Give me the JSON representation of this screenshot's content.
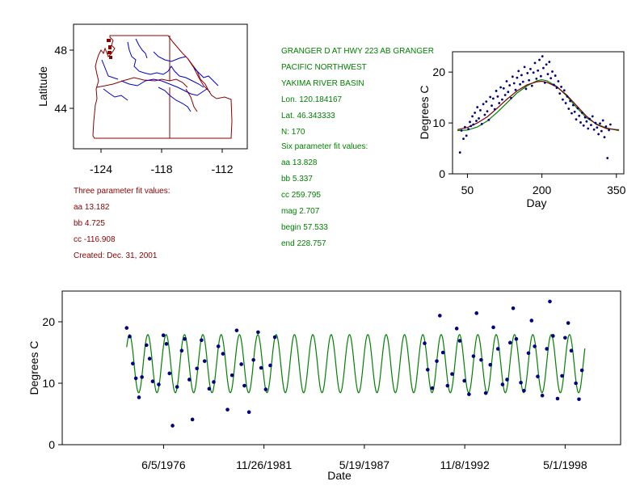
{
  "map": {
    "ylabel": "Latitude",
    "xticks": [
      "-124",
      "-118",
      "-112"
    ],
    "yticks": [
      "48",
      "44"
    ],
    "colors": {
      "border": "#8b0000",
      "river": "#0000cc"
    }
  },
  "station": {
    "name": "GRANGER D  AT HWY 223 AB GRANGER",
    "region": "PACIFIC NORTHWEST",
    "basin": "YAKIMA RIVER BASIN",
    "lon": "Lon. 120.184167",
    "lat": "Lat. 46.343333",
    "n": "N: 170"
  },
  "three_param": {
    "title": "Three parameter fit values:",
    "aa": "aa 13.182",
    "bb": "bb 4.725",
    "cc": "cc -116.908",
    "created": "Created:   Dec. 31, 2001"
  },
  "six_param": {
    "title": "Six parameter fit values:",
    "aa": "aa 13.828",
    "bb": "bb 5.337",
    "cc": "cc 259.795",
    "mag": "mag 2.707",
    "begin": "begin 57.533",
    "end": "end 228.757"
  },
  "colors": {
    "text_red": "#8b0000",
    "text_green": "#008000",
    "points": "#000080",
    "fit": "#008000",
    "fit2": "#800000"
  },
  "chart_data": [
    {
      "type": "scatter",
      "title": "",
      "xlabel": "Day",
      "ylabel": "Degrees C",
      "xlim": [
        20,
        365
      ],
      "ylim": [
        0,
        24
      ],
      "xticks": [
        50,
        200,
        350
      ],
      "yticks": [
        0,
        10,
        20
      ],
      "points": [
        [
          35,
          4.2
        ],
        [
          38,
          8.5
        ],
        [
          42,
          6.9
        ],
        [
          45,
          9.2
        ],
        [
          48,
          7.5
        ],
        [
          52,
          8.8
        ],
        [
          55,
          10.2
        ],
        [
          57,
          9.4
        ],
        [
          60,
          11.3
        ],
        [
          62,
          9.7
        ],
        [
          65,
          12.0
        ],
        [
          68,
          10.4
        ],
        [
          70,
          13.1
        ],
        [
          73,
          10.9
        ],
        [
          76,
          12.5
        ],
        [
          79,
          9.8
        ],
        [
          82,
          13.7
        ],
        [
          85,
          11.6
        ],
        [
          88,
          14.2
        ],
        [
          90,
          12.3
        ],
        [
          93,
          10.6
        ],
        [
          96,
          15.1
        ],
        [
          99,
          13.4
        ],
        [
          102,
          14.8
        ],
        [
          105,
          12.7
        ],
        [
          108,
          16.3
        ],
        [
          111,
          15.2
        ],
        [
          114,
          13.9
        ],
        [
          117,
          17.0
        ],
        [
          120,
          14.6
        ],
        [
          123,
          16.8
        ],
        [
          126,
          15.5
        ],
        [
          129,
          18.2
        ],
        [
          132,
          16.1
        ],
        [
          135,
          17.4
        ],
        [
          138,
          14.9
        ],
        [
          141,
          19.1
        ],
        [
          144,
          17.8
        ],
        [
          147,
          16.5
        ],
        [
          150,
          18.9
        ],
        [
          153,
          20.2
        ],
        [
          156,
          17.6
        ],
        [
          159,
          19.4
        ],
        [
          162,
          18.1
        ],
        [
          165,
          21.0
        ],
        [
          168,
          16.7
        ],
        [
          171,
          19.8
        ],
        [
          174,
          18.4
        ],
        [
          177,
          20.6
        ],
        [
          180,
          17.3
        ],
        [
          183,
          19.9
        ],
        [
          186,
          21.8
        ],
        [
          189,
          18.7
        ],
        [
          192,
          20.3
        ],
        [
          195,
          22.4
        ],
        [
          198,
          19.2
        ],
        [
          201,
          23.1
        ],
        [
          203,
          20.8
        ],
        [
          206,
          17.9
        ],
        [
          209,
          21.5
        ],
        [
          212,
          19.6
        ],
        [
          215,
          22.0
        ],
        [
          218,
          18.8
        ],
        [
          221,
          20.1
        ],
        [
          224,
          17.5
        ],
        [
          227,
          19.3
        ],
        [
          230,
          16.9
        ],
        [
          233,
          18.2
        ],
        [
          236,
          15.8
        ],
        [
          239,
          17.1
        ],
        [
          242,
          14.6
        ],
        [
          245,
          16.4
        ],
        [
          248,
          13.9
        ],
        [
          251,
          15.2
        ],
        [
          254,
          12.8
        ],
        [
          257,
          14.3
        ],
        [
          260,
          11.9
        ],
        [
          263,
          13.5
        ],
        [
          266,
          12.2
        ],
        [
          269,
          10.7
        ],
        [
          272,
          12.9
        ],
        [
          275,
          11.4
        ],
        [
          278,
          10.1
        ],
        [
          281,
          12.0
        ],
        [
          284,
          9.5
        ],
        [
          287,
          11.1
        ],
        [
          290,
          10.3
        ],
        [
          293,
          8.9
        ],
        [
          296,
          10.8
        ],
        [
          299,
          9.6
        ],
        [
          302,
          11.3
        ],
        [
          305,
          8.7
        ],
        [
          308,
          10.0
        ],
        [
          311,
          9.1
        ],
        [
          314,
          7.8
        ],
        [
          317,
          9.9
        ],
        [
          320,
          8.4
        ],
        [
          323,
          10.5
        ],
        [
          326,
          7.2
        ],
        [
          329,
          9.3
        ],
        [
          332,
          3.1
        ],
        [
          335,
          8.6
        ],
        [
          338,
          9.7
        ]
      ],
      "fit_lines": [
        {
          "name": "",
          "color": "#008000",
          "x": [
            30,
            50,
            70,
            90,
            110,
            130,
            150,
            170,
            190,
            200,
            210,
            230,
            250,
            270,
            290,
            310,
            330,
            350,
            355
          ],
          "y": [
            8.5,
            8.6,
            9.2,
            10.4,
            12.1,
            14.0,
            15.9,
            17.3,
            18.3,
            18.5,
            18.3,
            17.2,
            15.3,
            13.0,
            11.0,
            9.8,
            9.0,
            8.6,
            8.5
          ]
        },
        {
          "name": "",
          "color": "#800000",
          "x": [
            30,
            50,
            70,
            90,
            110,
            130,
            150,
            170,
            190,
            200,
            210,
            230,
            250,
            270,
            290,
            310,
            330,
            350,
            355
          ],
          "y": [
            8.7,
            9.1,
            10.0,
            11.2,
            12.9,
            14.7,
            16.3,
            17.5,
            18.1,
            18.2,
            18.0,
            17.1,
            15.5,
            13.4,
            11.3,
            9.7,
            8.9,
            8.7,
            8.7
          ]
        }
      ]
    },
    {
      "type": "line",
      "title": "",
      "xlabel": "Date",
      "ylabel": "Degrees C",
      "ylim": [
        0,
        25
      ],
      "yticks": [
        0,
        10,
        20
      ],
      "xticks": [
        "6/5/1976",
        "11/26/1981",
        "5/19/1987",
        "11/8/1992",
        "5/1/1998"
      ],
      "xlim": [
        "11/25/1970",
        "5/10/2001"
      ],
      "fit": {
        "aa": 13.182,
        "bb": 4.725,
        "cc": -116.908,
        "start": "6/1/1974",
        "end": "6/1/1999",
        "color": "#008000"
      },
      "points": [
        [
          "6/1/1974",
          19.0
        ],
        [
          "8/1/1974",
          17.6
        ],
        [
          "10/1/1974",
          13.2
        ],
        [
          "12/1/1974",
          10.8
        ],
        [
          "2/1/1975",
          7.7
        ],
        [
          "4/1/1975",
          11.0
        ],
        [
          "7/1/1975",
          16.2
        ],
        [
          "9/1/1975",
          14.0
        ],
        [
          "11/1/1975",
          10.3
        ],
        [
          "3/1/1976",
          9.8
        ],
        [
          "6/1/1976",
          17.8
        ],
        [
          "8/1/1976",
          16.4
        ],
        [
          "10/1/1976",
          11.6
        ],
        [
          "12/1/1976",
          3.1
        ],
        [
          "3/1/1977",
          9.4
        ],
        [
          "6/1/1977",
          15.3
        ],
        [
          "8/1/1977",
          17.2
        ],
        [
          "11/1/1977",
          10.6
        ],
        [
          "1/1/1978",
          4.1
        ],
        [
          "4/1/1978",
          12.4
        ],
        [
          "7/1/1978",
          17.0
        ],
        [
          "9/1/1978",
          13.6
        ],
        [
          "12/1/1978",
          9.1
        ],
        [
          "3/1/1979",
          10.2
        ],
        [
          "6/1/1979",
          16.0
        ],
        [
          "9/1/1979",
          14.8
        ],
        [
          "12/1/1979",
          5.7
        ],
        [
          "3/1/1980",
          11.3
        ],
        [
          "6/1/1980",
          18.6
        ],
        [
          "9/1/1980",
          13.1
        ],
        [
          "11/1/1980",
          9.6
        ],
        [
          "2/1/1981",
          5.3
        ],
        [
          "5/1/1981",
          13.8
        ],
        [
          "8/1/1981",
          18.3
        ],
        [
          "10/1/1981",
          12.5
        ],
        [
          "1/1/1982",
          9.0
        ],
        [
          "4/1/1982",
          12.9
        ],
        [
          "7/1/1982",
          17.5
        ],
        [
          "9/1/1990",
          16.5
        ],
        [
          "11/1/1990",
          12.2
        ],
        [
          "2/1/1991",
          9.2
        ],
        [
          "5/1/1991",
          13.6
        ],
        [
          "7/1/1991",
          21.0
        ],
        [
          "9/1/1991",
          15.0
        ],
        [
          "12/1/1991",
          9.6
        ],
        [
          "3/1/1992",
          11.5
        ],
        [
          "6/1/1992",
          18.9
        ],
        [
          "8/1/1992",
          16.9
        ],
        [
          "11/1/1992",
          10.4
        ],
        [
          "2/1/1993",
          8.2
        ],
        [
          "5/1/1993",
          14.4
        ],
        [
          "7/1/1993",
          21.4
        ],
        [
          "10/1/1993",
          13.8
        ],
        [
          "1/1/1994",
          8.4
        ],
        [
          "4/1/1994",
          13.0
        ],
        [
          "6/1/1994",
          19.1
        ],
        [
          "9/1/1994",
          15.6
        ],
        [
          "12/1/1994",
          9.8
        ],
        [
          "3/1/1995",
          10.6
        ],
        [
          "5/1/1995",
          16.6
        ],
        [
          "7/1/1995",
          22.2
        ],
        [
          "9/1/1995",
          17.2
        ],
        [
          "12/1/1995",
          10.1
        ],
        [
          "2/1/1996",
          8.8
        ],
        [
          "5/1/1996",
          14.9
        ],
        [
          "7/1/1996",
          20.2
        ],
        [
          "9/1/1996",
          16.0
        ],
        [
          "11/1/1996",
          11.1
        ],
        [
          "2/1/1997",
          8.0
        ],
        [
          "5/1/1997",
          15.6
        ],
        [
          "7/1/1997",
          23.3
        ],
        [
          "9/1/1997",
          17.7
        ],
        [
          "12/1/1997",
          7.5
        ],
        [
          "3/1/1998",
          11.2
        ],
        [
          "5/1/1998",
          17.4
        ],
        [
          "7/1/1998",
          19.8
        ],
        [
          "9/1/1998",
          15.3
        ],
        [
          "12/1/1998",
          10.0
        ],
        [
          "2/1/1999",
          7.4
        ],
        [
          "4/1/1999",
          12.1
        ]
      ]
    }
  ]
}
